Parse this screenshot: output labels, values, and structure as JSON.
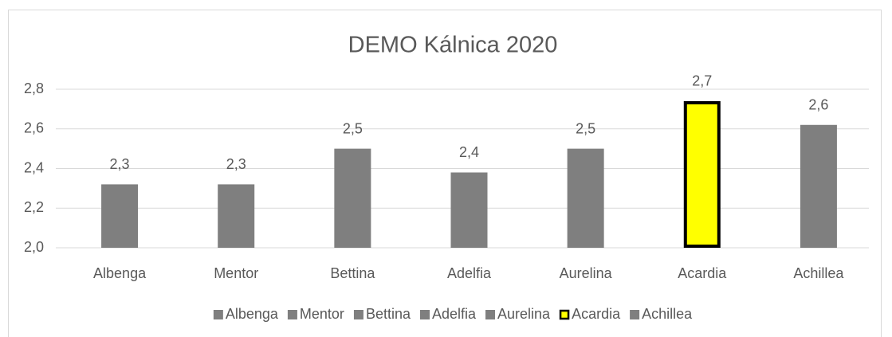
{
  "chart_data": {
    "type": "bar",
    "title": "DEMO Kálnica 2020",
    "categories": [
      "Albenga",
      "Mentor",
      "Bettina",
      "Adelfia",
      "Aurelina",
      "Acardia",
      "Achillea"
    ],
    "values": [
      2.32,
      2.32,
      2.5,
      2.38,
      2.5,
      2.74,
      2.62
    ],
    "value_labels": [
      "2,3",
      "2,3",
      "2,5",
      "2,4",
      "2,5",
      "2,7",
      "2,6"
    ],
    "colors": [
      "#7f7f7f",
      "#7f7f7f",
      "#7f7f7f",
      "#7f7f7f",
      "#7f7f7f",
      "#ffff00",
      "#7f7f7f"
    ],
    "edge_colors": [
      null,
      null,
      null,
      null,
      null,
      "#000000",
      null
    ],
    "ylim": [
      2.0,
      2.8
    ],
    "yticks": [
      {
        "value": 2.0,
        "label": "2,0"
      },
      {
        "value": 2.2,
        "label": "2,2"
      },
      {
        "value": 2.4,
        "label": "2,4"
      },
      {
        "value": 2.6,
        "label": "2,6"
      },
      {
        "value": 2.8,
        "label": "2,8"
      }
    ],
    "grid": true,
    "legend": "bottom"
  }
}
